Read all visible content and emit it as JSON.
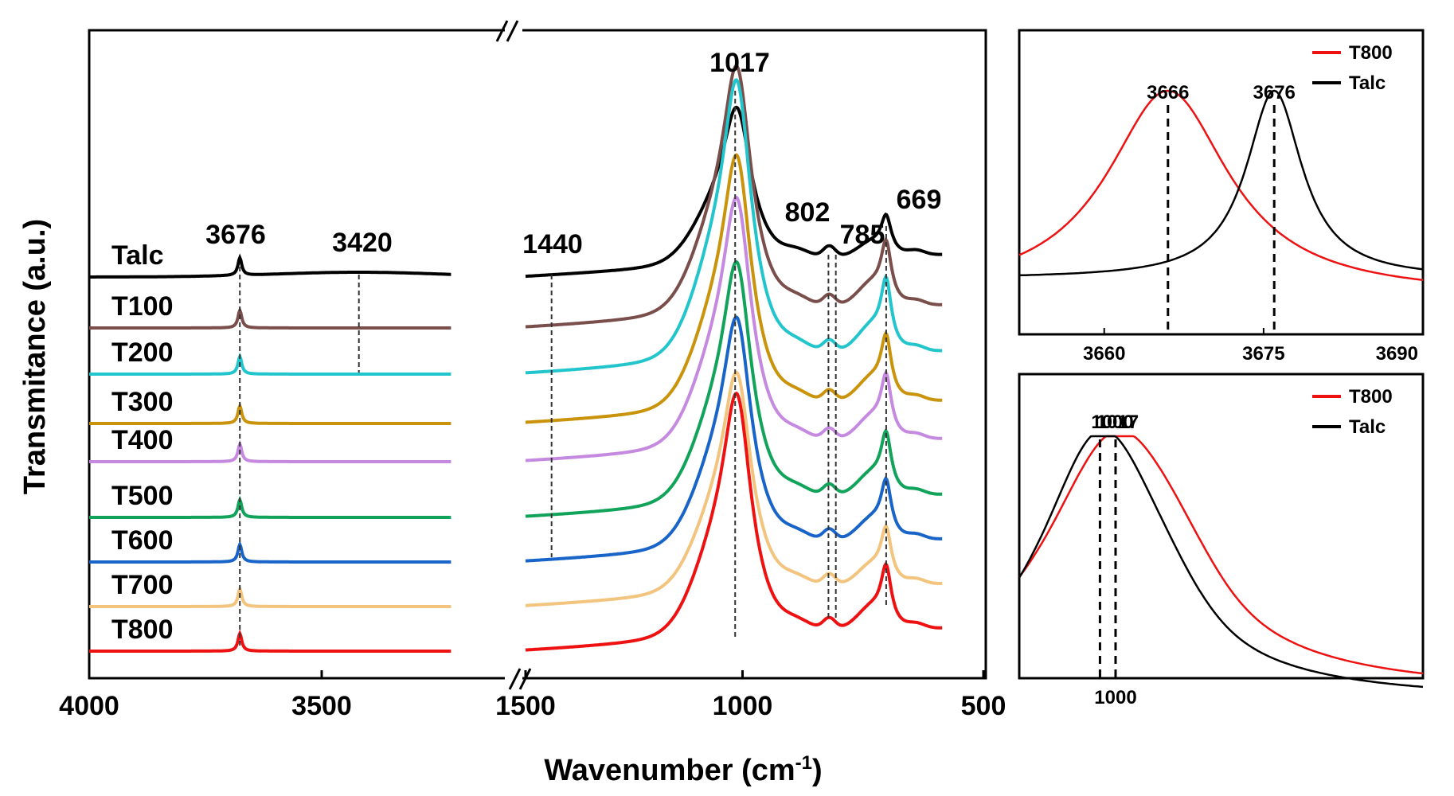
{
  "chart_data": [
    {
      "type": "line",
      "xlabel": "Wavenumber (cm",
      "xlabel_sup": "-1",
      "xlabel_close": ")",
      "ylabel": "Transmitance (a.u.)",
      "x_break": true,
      "x_segments": [
        {
          "xlim": [
            4000,
            3000
          ],
          "ticks": [
            "4000",
            "3500"
          ]
        },
        {
          "xlim": [
            1500,
            500
          ],
          "ticks": [
            "1500",
            "1000",
            "500"
          ]
        }
      ],
      "series": [
        {
          "name": "Talc",
          "color": "#000000"
        },
        {
          "name": "T100",
          "color": "#7a4e4a"
        },
        {
          "name": "T200",
          "color": "#22c5cc"
        },
        {
          "name": "T300",
          "color": "#c9930b"
        },
        {
          "name": "T400",
          "color": "#c58ae0"
        },
        {
          "name": "T500",
          "color": "#12a35a"
        },
        {
          "name": "T600",
          "color": "#1864c9"
        },
        {
          "name": "T700",
          "color": "#f2c47d"
        },
        {
          "name": "T800",
          "color": "#ee1111"
        }
      ],
      "annotations": [
        {
          "label": "3676",
          "x": 3676
        },
        {
          "label": "3420",
          "x": 3420
        },
        {
          "label": "1440",
          "x": 1440
        },
        {
          "label": "1017",
          "x": 1017
        },
        {
          "label": "802",
          "x": 802
        },
        {
          "label": "785",
          "x": 785
        },
        {
          "label": "669",
          "x": 669
        }
      ]
    },
    {
      "type": "line",
      "xlim": [
        3652,
        3690
      ],
      "ticks": [
        "3660",
        "3675",
        "3690"
      ],
      "series": [
        {
          "name": "T800",
          "color": "#ee1111",
          "peak_x": 3666,
          "peak_label": "3666"
        },
        {
          "name": "Talc",
          "color": "#000000",
          "peak_x": 3676,
          "peak_label": "3676"
        }
      ]
    },
    {
      "type": "line",
      "ticks": [
        "1000"
      ],
      "series": [
        {
          "name": "T800",
          "color": "#ee1111",
          "peak_x": 1000,
          "peak_label": "1000"
        },
        {
          "name": "Talc",
          "color": "#000000",
          "peak_x": 1017,
          "peak_label": "1017"
        }
      ]
    }
  ]
}
